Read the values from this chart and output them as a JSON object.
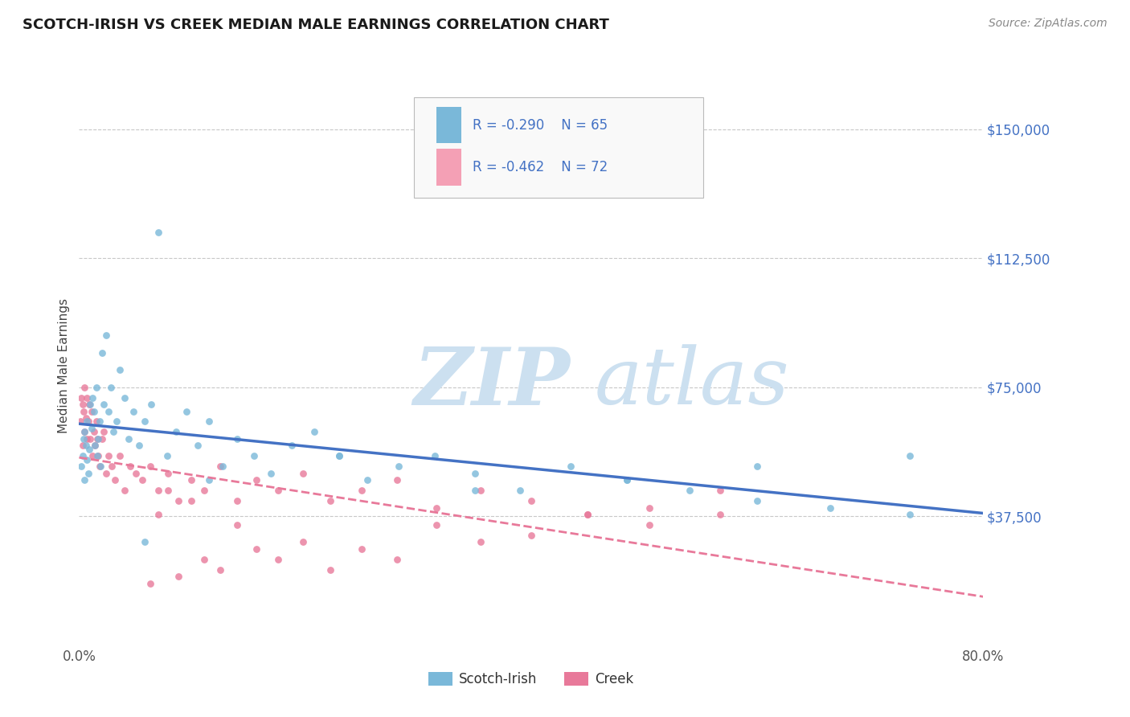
{
  "title": "SCOTCH-IRISH VS CREEK MEDIAN MALE EARNINGS CORRELATION CHART",
  "source_text": "Source: ZipAtlas.com",
  "ylabel": "Median Male Earnings",
  "xlim": [
    0.0,
    0.8
  ],
  "ylim": [
    0,
    162500
  ],
  "yticks": [
    37500,
    75000,
    112500,
    150000
  ],
  "ytick_labels": [
    "$37,500",
    "$75,000",
    "$112,500",
    "$150,000"
  ],
  "xtick_labels": [
    "0.0%",
    "80.0%"
  ],
  "background_color": "#ffffff",
  "grid_color": "#c8c8c8",
  "scotch_irish_color": "#7ab8d9",
  "creek_color": "#e8799a",
  "creek_fill": "#f4b8c8",
  "line_blue": "#4472c4",
  "line_pink": "#e8799a",
  "R_scotch": -0.29,
  "N_scotch": 65,
  "R_creek": -0.462,
  "N_creek": 72,
  "scotch_irish_x": [
    0.002,
    0.003,
    0.004,
    0.005,
    0.005,
    0.006,
    0.007,
    0.007,
    0.008,
    0.009,
    0.01,
    0.011,
    0.012,
    0.013,
    0.014,
    0.015,
    0.016,
    0.017,
    0.018,
    0.019,
    0.02,
    0.022,
    0.024,
    0.026,
    0.028,
    0.03,
    0.033,
    0.036,
    0.04,
    0.044,
    0.048,
    0.053,
    0.058,
    0.064,
    0.07,
    0.078,
    0.086,
    0.095,
    0.105,
    0.115,
    0.127,
    0.14,
    0.155,
    0.17,
    0.188,
    0.208,
    0.23,
    0.255,
    0.283,
    0.315,
    0.35,
    0.39,
    0.435,
    0.485,
    0.54,
    0.6,
    0.665,
    0.735,
    0.735,
    0.6,
    0.485,
    0.35,
    0.23,
    0.115,
    0.058
  ],
  "scotch_irish_y": [
    52000,
    55000,
    60000,
    48000,
    62000,
    58000,
    54000,
    65000,
    50000,
    57000,
    70000,
    63000,
    72000,
    68000,
    58000,
    75000,
    55000,
    60000,
    65000,
    52000,
    85000,
    70000,
    90000,
    68000,
    75000,
    62000,
    65000,
    80000,
    72000,
    60000,
    68000,
    58000,
    65000,
    70000,
    120000,
    55000,
    62000,
    68000,
    58000,
    65000,
    52000,
    60000,
    55000,
    50000,
    58000,
    62000,
    55000,
    48000,
    52000,
    55000,
    50000,
    45000,
    52000,
    48000,
    45000,
    42000,
    40000,
    38000,
    55000,
    52000,
    48000,
    45000,
    55000,
    48000,
    30000
  ],
  "creek_x": [
    0.001,
    0.002,
    0.003,
    0.003,
    0.004,
    0.005,
    0.005,
    0.006,
    0.007,
    0.007,
    0.008,
    0.009,
    0.01,
    0.011,
    0.012,
    0.013,
    0.014,
    0.015,
    0.016,
    0.017,
    0.018,
    0.02,
    0.022,
    0.024,
    0.026,
    0.029,
    0.032,
    0.036,
    0.04,
    0.045,
    0.05,
    0.056,
    0.063,
    0.07,
    0.079,
    0.088,
    0.099,
    0.111,
    0.125,
    0.14,
    0.157,
    0.176,
    0.198,
    0.222,
    0.25,
    0.281,
    0.316,
    0.355,
    0.4,
    0.45,
    0.505,
    0.567,
    0.567,
    0.505,
    0.45,
    0.4,
    0.355,
    0.316,
    0.281,
    0.25,
    0.222,
    0.198,
    0.176,
    0.157,
    0.14,
    0.125,
    0.111,
    0.099,
    0.088,
    0.079,
    0.07,
    0.063
  ],
  "creek_y": [
    65000,
    72000,
    70000,
    58000,
    68000,
    75000,
    62000,
    66000,
    60000,
    72000,
    65000,
    70000,
    60000,
    68000,
    55000,
    62000,
    58000,
    65000,
    60000,
    55000,
    52000,
    60000,
    62000,
    50000,
    55000,
    52000,
    48000,
    55000,
    45000,
    52000,
    50000,
    48000,
    52000,
    45000,
    50000,
    42000,
    48000,
    45000,
    52000,
    42000,
    48000,
    45000,
    50000,
    42000,
    45000,
    48000,
    40000,
    45000,
    42000,
    38000,
    40000,
    38000,
    45000,
    35000,
    38000,
    32000,
    30000,
    35000,
    25000,
    28000,
    22000,
    30000,
    25000,
    28000,
    35000,
    22000,
    25000,
    42000,
    20000,
    45000,
    38000,
    18000
  ],
  "watermark_ZIP_color": "#cce0f0",
  "watermark_atlas_color": "#cce0f0"
}
